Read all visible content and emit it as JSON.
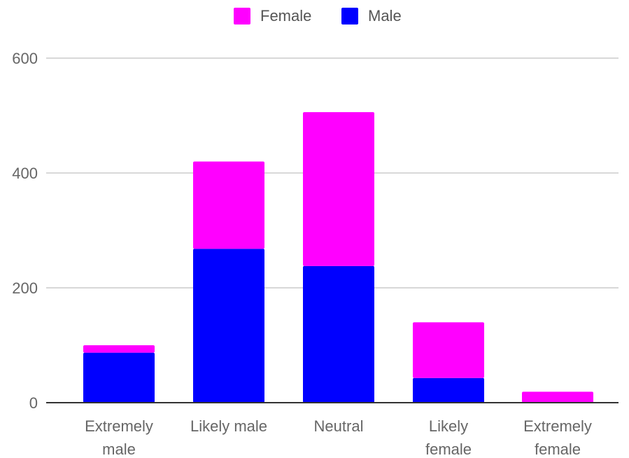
{
  "chart_data": {
    "type": "bar",
    "stacked": true,
    "categories": [
      [
        "Extremely",
        "male"
      ],
      [
        "Likely male"
      ],
      [
        "Neutral"
      ],
      [
        "Likely",
        "female"
      ],
      [
        "Extremely",
        "female"
      ]
    ],
    "series": [
      {
        "name": "Male",
        "color": "#0000ff",
        "values": [
          87,
          268,
          238,
          43,
          0
        ]
      },
      {
        "name": "Female",
        "color": "#ff00ff",
        "values": [
          13,
          152,
          268,
          97,
          19
        ]
      }
    ],
    "legend": {
      "position": "top",
      "order": [
        "Female",
        "Male"
      ]
    },
    "yticks": [
      "0",
      "200",
      "400",
      "600"
    ],
    "ylim": [
      0,
      600
    ],
    "grid": true,
    "title": "",
    "xlabel": "",
    "ylabel": ""
  }
}
